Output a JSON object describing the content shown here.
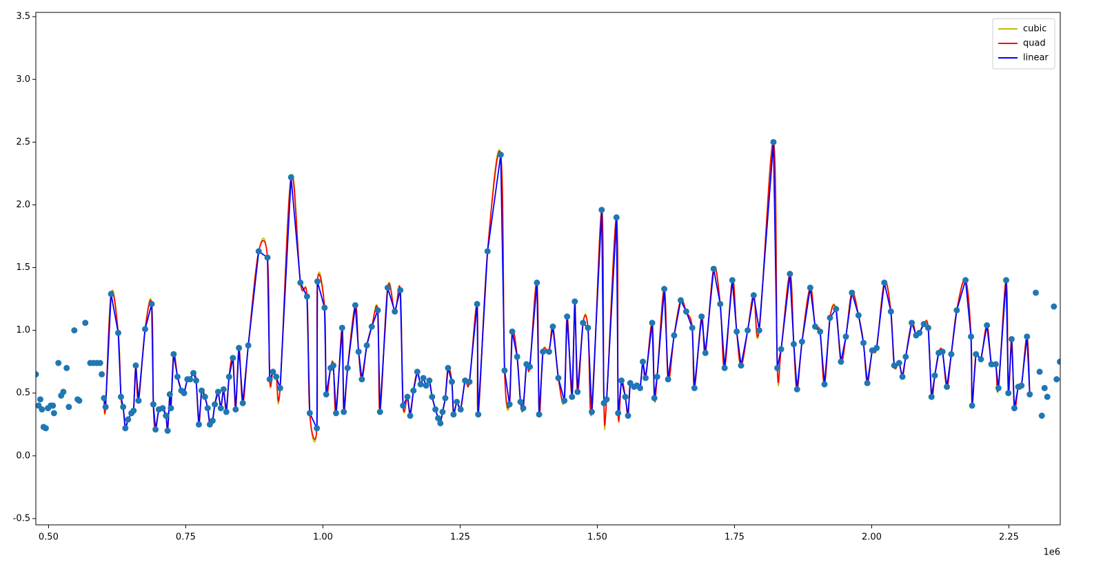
{
  "chart_data": {
    "type": "scatter",
    "color": "#1f77b4",
    "x_offset_label": "1e6",
    "legend": "upper right",
    "xlim": [
      476900,
      2343600
    ],
    "ylim": [
      -0.55,
      3.534
    ],
    "xticks": [
      {
        "value": 500000,
        "label": "0.50"
      },
      {
        "value": 750000,
        "label": "0.75"
      },
      {
        "value": 1000000,
        "label": "1.00"
      },
      {
        "value": 1250000,
        "label": "1.25"
      },
      {
        "value": 1500000,
        "label": "1.50"
      },
      {
        "value": 1750000,
        "label": "1.75"
      },
      {
        "value": 2000000,
        "label": "2.00"
      },
      {
        "value": 2250000,
        "label": "2.25"
      }
    ],
    "yticks": [
      -0.5,
      {
        "value": 0,
        "label": "0.0"
      },
      0.5,
      {
        "value": 1,
        "label": "1.0"
      },
      1.5,
      {
        "value": 2,
        "label": "2.0"
      },
      2.5,
      {
        "value": 3,
        "label": "3.0"
      },
      3.5
    ],
    "series": [
      {
        "name": "cubic",
        "color": "#bfbf00",
        "interpolation": "cubic",
        "x_range": [
          600000,
          2295000
        ]
      },
      {
        "name": "quad",
        "color": "#ff0000",
        "interpolation": "quadratic",
        "x_range": [
          600000,
          2295000
        ]
      },
      {
        "name": "linear",
        "color": "#0000ff",
        "interpolation": "linear",
        "x_range": [
          600000,
          2295000
        ]
      }
    ],
    "x": [
      477000,
      482000,
      485000,
      488000,
      491000,
      495000,
      499000,
      504000,
      508000,
      510000,
      518000,
      523000,
      527000,
      533000,
      537000,
      547000,
      553000,
      556000,
      567000,
      576000,
      582000,
      588000,
      594000,
      597000,
      601000,
      604000,
      614000,
      627000,
      632000,
      636000,
      640000,
      645000,
      651000,
      655000,
      659000,
      664000,
      676000,
      688000,
      691000,
      695000,
      701000,
      708000,
      714000,
      717000,
      721000,
      723000,
      728000,
      735000,
      742000,
      747000,
      753000,
      758000,
      764000,
      769000,
      774000,
      779000,
      785000,
      790000,
      794000,
      799000,
      803000,
      809000,
      814000,
      819000,
      824000,
      829000,
      836000,
      841000,
      847000,
      854000,
      864000,
      883000,
      899000,
      903000,
      909000,
      915000,
      922000,
      942000,
      959000,
      971000,
      976000,
      989000,
      990000,
      1003000,
      1006000,
      1014000,
      1019000,
      1024000,
      1035000,
      1038000,
      1045000,
      1059000,
      1065000,
      1071000,
      1080000,
      1089000,
      1100000,
      1104000,
      1118000,
      1131000,
      1141000,
      1146000,
      1154000,
      1159000,
      1165000,
      1172000,
      1178000,
      1183000,
      1188000,
      1194000,
      1199000,
      1205000,
      1210000,
      1214000,
      1218000,
      1223000,
      1228000,
      1235000,
      1238000,
      1244000,
      1251000,
      1259000,
      1267000,
      1281000,
      1283000,
      1300000,
      1324000,
      1331000,
      1340000,
      1345000,
      1354000,
      1360000,
      1365000,
      1371000,
      1377000,
      1390000,
      1394000,
      1401000,
      1412000,
      1419000,
      1429000,
      1440000,
      1445000,
      1454000,
      1459000,
      1464000,
      1474000,
      1483000,
      1490000,
      1508000,
      1512000,
      1517000,
      1535000,
      1538000,
      1544000,
      1551000,
      1556000,
      1560000,
      1567000,
      1572000,
      1578000,
      1583000,
      1588000,
      1600000,
      1604000,
      1609000,
      1622000,
      1629000,
      1640000,
      1652000,
      1662000,
      1673000,
      1677000,
      1690000,
      1697000,
      1712000,
      1724000,
      1732000,
      1746000,
      1754000,
      1762000,
      1774000,
      1785000,
      1795000,
      1821000,
      1828000,
      1835000,
      1851000,
      1858000,
      1864000,
      1873000,
      1888000,
      1897000,
      1906000,
      1914000,
      1924000,
      1935000,
      1944000,
      1953000,
      1964000,
      1976000,
      1985000,
      1992000,
      2001000,
      2009000,
      2023000,
      2035000,
      2041000,
      2050000,
      2056000,
      2062000,
      2073000,
      2081000,
      2087000,
      2095000,
      2103000,
      2109000,
      2115000,
      2122000,
      2129000,
      2137000,
      2145000,
      2155000,
      2171000,
      2181000,
      2183000,
      2190000,
      2199000,
      2210000,
      2218000,
      2226000,
      2231000,
      2245000,
      2249000,
      2255000,
      2260000,
      2267000,
      2273000,
      2283000,
      2288000,
      2299000,
      2306000,
      2310000,
      2315000,
      2320000,
      2332000,
      2337000,
      2343000
    ],
    "values": [
      0.65,
      0.4,
      0.45,
      0.37,
      0.23,
      0.22,
      0.38,
      0.4,
      0.4,
      0.34,
      0.74,
      0.48,
      0.51,
      0.7,
      0.39,
      1.0,
      0.45,
      0.44,
      1.06,
      0.74,
      0.74,
      0.74,
      0.74,
      0.65,
      0.46,
      0.39,
      1.29,
      0.98,
      0.47,
      0.39,
      0.22,
      0.29,
      0.34,
      0.36,
      0.72,
      0.44,
      1.01,
      1.21,
      0.41,
      0.21,
      0.37,
      0.38,
      0.32,
      0.2,
      0.49,
      0.38,
      0.81,
      0.63,
      0.52,
      0.5,
      0.61,
      0.61,
      0.66,
      0.6,
      0.25,
      0.52,
      0.47,
      0.38,
      0.25,
      0.28,
      0.41,
      0.51,
      0.38,
      0.53,
      0.35,
      0.63,
      0.78,
      0.37,
      0.86,
      0.42,
      0.88,
      1.63,
      1.58,
      0.61,
      0.67,
      0.63,
      0.54,
      2.22,
      1.38,
      1.27,
      0.34,
      0.22,
      1.39,
      1.18,
      0.49,
      0.7,
      0.72,
      0.34,
      1.02,
      0.35,
      0.7,
      1.2,
      0.83,
      0.61,
      0.88,
      1.03,
      1.16,
      0.35,
      1.34,
      1.15,
      1.32,
      0.4,
      0.47,
      0.32,
      0.52,
      0.67,
      0.57,
      0.62,
      0.56,
      0.6,
      0.47,
      0.37,
      0.3,
      0.26,
      0.35,
      0.46,
      0.7,
      0.59,
      0.33,
      0.43,
      0.37,
      0.6,
      0.59,
      1.21,
      0.33,
      1.63,
      2.4,
      0.68,
      0.41,
      0.99,
      0.79,
      0.43,
      0.38,
      0.73,
      0.71,
      1.38,
      0.33,
      0.83,
      0.83,
      1.03,
      0.62,
      0.44,
      1.11,
      0.47,
      1.23,
      0.51,
      1.06,
      1.02,
      0.35,
      1.96,
      0.42,
      0.45,
      1.9,
      0.34,
      0.6,
      0.47,
      0.32,
      0.58,
      0.55,
      0.56,
      0.54,
      0.75,
      0.62,
      1.06,
      0.46,
      0.63,
      1.33,
      0.61,
      0.96,
      1.24,
      1.15,
      1.02,
      0.54,
      1.11,
      0.82,
      1.49,
      1.21,
      0.7,
      1.4,
      0.99,
      0.72,
      1.0,
      1.28,
      1.0,
      2.5,
      0.7,
      0.85,
      1.45,
      0.89,
      0.53,
      0.91,
      1.34,
      1.03,
      0.99,
      0.57,
      1.1,
      1.17,
      0.75,
      0.95,
      1.3,
      1.12,
      0.9,
      0.58,
      0.84,
      0.86,
      1.38,
      1.15,
      0.72,
      0.74,
      0.63,
      0.79,
      1.06,
      0.96,
      0.98,
      1.05,
      1.02,
      0.47,
      0.64,
      0.82,
      0.83,
      0.55,
      0.81,
      1.16,
      1.4,
      0.95,
      0.4,
      0.81,
      0.77,
      1.04,
      0.73,
      0.73,
      0.54,
      1.4,
      0.5,
      0.93,
      0.38,
      0.55,
      0.56,
      0.95,
      0.49,
      1.3,
      0.67,
      0.32,
      0.54,
      0.47,
      1.19,
      0.61,
      0.75
    ]
  }
}
